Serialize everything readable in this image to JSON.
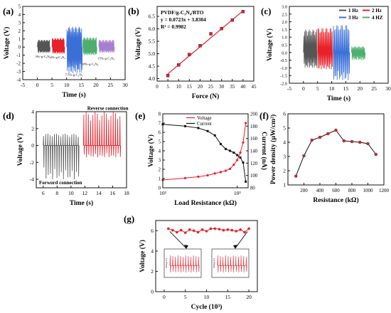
{
  "colors": {
    "black": "#111111",
    "red": "#e8202a",
    "blue": "#3a6fd8",
    "green": "#4caf6d",
    "purple": "#a77fd0",
    "gray": "#555555",
    "fit": "#e8202a"
  },
  "chart_data": [
    {
      "panel": "(a)",
      "type": "line",
      "xlabel": "Time (s)",
      "ylabel": "Voltage (V)",
      "xlim": [
        -5,
        30
      ],
      "ylim": [
        -4,
        5
      ],
      "xticks": [
        "-5",
        "0",
        "5",
        "10",
        "15",
        "20",
        "25",
        "30"
      ],
      "yticks": [
        "-4",
        "-3",
        "-2",
        "-1",
        "0",
        "1",
        "2",
        "3",
        "4",
        "5"
      ],
      "series": [
        {
          "name": "0%-g-C3N4",
          "color": "#555555",
          "x_range": [
            0,
            4
          ],
          "amplitude": [
            0.9,
            -0.7
          ]
        },
        {
          "name": "2%-g-C3N4",
          "color": "#e8202a",
          "x_range": [
            5,
            9
          ],
          "amplitude": [
            1.1,
            -0.8
          ]
        },
        {
          "name": "7.5%-g-C3N4",
          "color": "#3a6fd8",
          "x_range": [
            10,
            15
          ],
          "amplitude": [
            2.5,
            -3.2
          ]
        },
        {
          "name": "10%-g-C3N4",
          "color": "#4caf6d",
          "x_range": [
            15.5,
            20
          ],
          "amplitude": [
            1.2,
            -1.0
          ]
        },
        {
          "name": "15%-g-C3N4",
          "color": "#a77fd0",
          "x_range": [
            21,
            26
          ],
          "amplitude": [
            0.9,
            -0.7
          ]
        }
      ],
      "labels": [
        {
          "text": "0%-g-C₃N₄",
          "x": 2,
          "y": -1.3
        },
        {
          "text": "2%-g-C₃N₄",
          "x": 7,
          "y": -1.4
        },
        {
          "text": "7.5%-g-C₃N₄",
          "x": 12.5,
          "y": -3.5
        },
        {
          "text": "10%-g-C₃N₄",
          "x": 18,
          "y": -2.2
        },
        {
          "text": "15%-g-C₃N₄",
          "x": 23.5,
          "y": -1.5
        }
      ]
    },
    {
      "panel": "(b)",
      "type": "scatter",
      "xlabel": "Force (N)",
      "ylabel": "Voltage (V)",
      "xlim": [
        0,
        45
      ],
      "ylim": [
        3.9,
        6.9
      ],
      "xticks": [
        "0",
        "5",
        "10",
        "15",
        "20",
        "25",
        "30",
        "35",
        "40",
        "45"
      ],
      "yticks": [
        "4.0",
        "4.5",
        "5.0",
        "5.5",
        "6.0",
        "6.5"
      ],
      "x": [
        5,
        10,
        15,
        20,
        25,
        30,
        35,
        40
      ],
      "y": [
        4.12,
        4.55,
        4.97,
        5.32,
        5.8,
        6.01,
        6.35,
        6.69
      ],
      "fit": {
        "slope": 0.0723,
        "intercept": 3.8304
      },
      "annotation": [
        "PVDF/g-C₃N₄/BTO",
        "y = 0.0723x + 3.8304",
        "R² = 0.9902"
      ]
    },
    {
      "panel": "(c)",
      "type": "line",
      "xlabel": "Time (s)",
      "ylabel": "Voltage (V)",
      "xlim": [
        -5,
        30
      ],
      "ylim": [
        -2.0,
        3.0
      ],
      "xticks": [
        "-5",
        "0",
        "5",
        "10",
        "15",
        "20",
        "25",
        "30"
      ],
      "yticks": [
        "-2.0",
        "-1.5",
        "-1.0",
        "-0.5",
        "0.0",
        "0.5",
        "1.0",
        "1.5",
        "2.0",
        "2.5",
        "3.0"
      ],
      "series": [
        {
          "name": "1 Hz",
          "color": "#555555",
          "x_range": [
            0,
            4.5
          ],
          "amplitude": [
            1.5,
            -1.0
          ]
        },
        {
          "name": "2 Hz",
          "color": "#e8202a",
          "x_range": [
            5,
            10
          ],
          "amplitude": [
            1.6,
            -1.1
          ]
        },
        {
          "name": "3 Hz",
          "color": "#3a6fd8",
          "x_range": [
            10.5,
            16
          ],
          "amplitude": [
            1.8,
            -1.8
          ]
        },
        {
          "name": "4 HZ",
          "color": "#4caf6d",
          "x_range": [
            17,
            21.5
          ],
          "amplitude": [
            0.4,
            -0.5
          ]
        }
      ],
      "legend": "top-right"
    },
    {
      "panel": "(d)",
      "type": "line",
      "xlabel": "Time (s)",
      "ylabel": "Voltage (V)",
      "xlim": [
        5,
        18
      ],
      "ylim": [
        -5,
        4
      ],
      "xticks": [
        "6",
        "8",
        "10",
        "12",
        "14",
        "16",
        "18"
      ],
      "yticks": [
        "-4",
        "-2",
        "0",
        "2",
        "4"
      ],
      "series": [
        {
          "name": "Forword connection",
          "color": "#555555",
          "x_range": [
            6,
            11
          ],
          "amplitude": [
            1.4,
            -4.0
          ]
        },
        {
          "name": "Reverse connection",
          "color": "#e8202a",
          "x_range": [
            11.8,
            17
          ],
          "amplitude": [
            4.0,
            -1.4
          ]
        }
      ],
      "labels": [
        {
          "text": "Reverse connection",
          "x": 15.3,
          "y": 4.2
        },
        {
          "text": "Forword connection",
          "x": 8.5,
          "y": -4.6
        }
      ]
    },
    {
      "panel": "(e)",
      "type": "line",
      "xlabel": "Load Resistance (kΩ)",
      "ylabel": "Voltage (V)",
      "ylabel2": "Current (nA)",
      "xscale": "log",
      "xlim": [
        100,
        1400
      ],
      "ylim": [
        0,
        8
      ],
      "ylim2": [
        80,
        200
      ],
      "yticks": [
        "0",
        "1",
        "2",
        "3",
        "4",
        "5",
        "6",
        "7",
        "8"
      ],
      "yticks2": [
        "80",
        "100",
        "120",
        "140",
        "160",
        "180",
        "200"
      ],
      "xticks": [
        "10²",
        "10³"
      ],
      "x": [
        100,
        200,
        300,
        400,
        500,
        600,
        700,
        800,
        900,
        1000,
        1100,
        1200,
        1300
      ],
      "series": [
        {
          "name": "Voltage",
          "color": "#e8202a",
          "axis": "left",
          "values": [
            0.85,
            1.05,
            1.2,
            1.35,
            1.55,
            1.7,
            1.85,
            2.05,
            2.5,
            3.0,
            3.8,
            4.9,
            7.0
          ]
        },
        {
          "name": "Current",
          "color": "#111111",
          "axis": "right",
          "values": [
            183,
            180,
            177,
            172,
            165,
            151,
            143,
            140,
            137,
            133,
            129,
            121,
            90
          ]
        }
      ],
      "legend": "top-center"
    },
    {
      "panel": "(f)",
      "type": "line",
      "xlabel": "Resistance (kΩ)",
      "ylabel": "Power density (μW/cm²)",
      "xlim": [
        0,
        1200
      ],
      "ylim": [
        1,
        6
      ],
      "xticks": [
        "200",
        "400",
        "600",
        "800",
        "1000",
        "1200"
      ],
      "yticks": [
        "1",
        "2",
        "3",
        "4",
        "5",
        "6"
      ],
      "x": [
        100,
        200,
        300,
        400,
        500,
        600,
        700,
        800,
        900,
        1000,
        1100
      ],
      "y": [
        1.62,
        3.05,
        4.15,
        4.35,
        4.6,
        4.85,
        4.1,
        4.05,
        4.0,
        3.9,
        3.15
      ]
    },
    {
      "panel": "(g)",
      "type": "line",
      "xlabel": "Cycle (10³)",
      "ylabel": "Voltage (V)",
      "xlim": [
        -2,
        22
      ],
      "ylim": [
        0,
        7
      ],
      "xticks": [
        "0",
        "5",
        "10",
        "15",
        "20"
      ],
      "yticks": [
        "0",
        "2",
        "4",
        "6"
      ],
      "x": [
        1,
        2,
        3,
        4,
        5,
        6,
        7,
        8,
        9,
        10,
        11,
        12,
        13,
        14,
        15,
        16,
        17,
        18,
        19,
        20
      ],
      "y": [
        6.2,
        6.05,
        5.85,
        6.05,
        5.8,
        6.1,
        6.0,
        5.85,
        6.1,
        5.95,
        6.2,
        6.2,
        6.15,
        6.05,
        6.1,
        6.05,
        5.95,
        6.1,
        5.85,
        6.2
      ],
      "inset_ylabel": "Voltage (V)"
    }
  ]
}
